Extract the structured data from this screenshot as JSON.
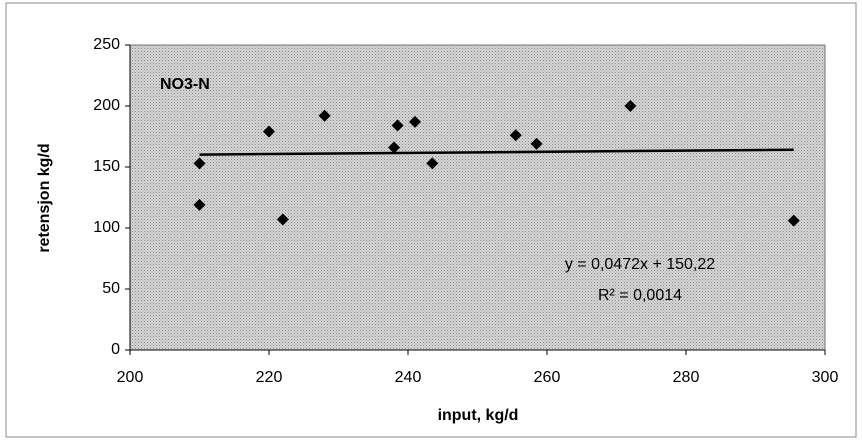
{
  "chart_data": {
    "type": "scatter",
    "title": "NO3-N",
    "x_label": "input, kg/d",
    "y_label": "retensjon kg/d",
    "x": [
      210,
      210,
      220,
      222,
      228,
      238,
      238.5,
      241,
      243.5,
      255.5,
      258.5,
      272,
      295.5
    ],
    "values": [
      153,
      119,
      179,
      107,
      192,
      166,
      184,
      187,
      153,
      176,
      169,
      200,
      106
    ],
    "color": "#000000",
    "xlim": [
      200,
      300
    ],
    "xticks": [
      200,
      220,
      240,
      260,
      280,
      300
    ],
    "ylim": [
      0,
      250
    ],
    "yticks": [
      0,
      50,
      100,
      150,
      200,
      250
    ],
    "grid": false,
    "trendline": {
      "slope": 0.0472,
      "intercept": 150.22,
      "equation": "y = 0,0472x + 150,22",
      "r2_label": "R² = 0,0014"
    }
  }
}
